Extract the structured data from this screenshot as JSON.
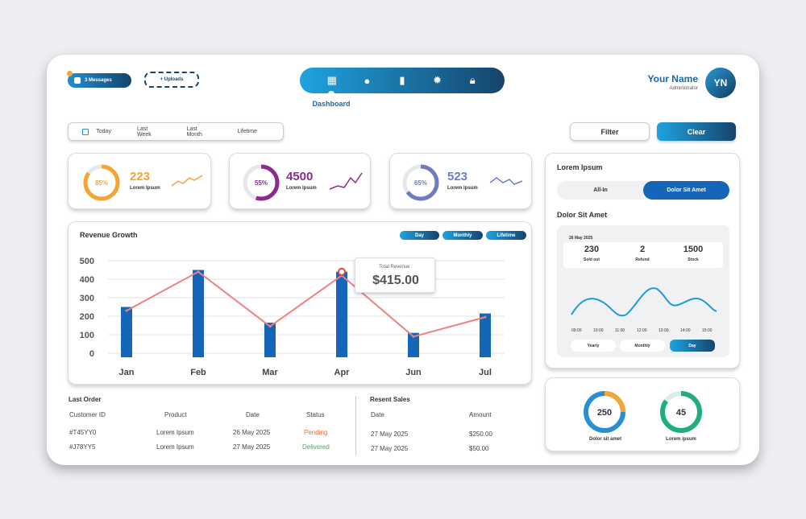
{
  "header": {
    "messages_label": "3 Messages",
    "uploads_label": "+ Uploads",
    "nav_active_label": "Dashboard",
    "user_name": "Your Name",
    "user_role": "Administrator",
    "avatar_initials": "YN",
    "nav_icons": [
      "dashboard-icon",
      "chat-icon",
      "bar-chart-icon",
      "gear-icon",
      "lock-icon"
    ]
  },
  "period": {
    "items": [
      "Today",
      "Last Week",
      "Last Month",
      "Lifetime"
    ]
  },
  "actions": {
    "filter_label": "Filter",
    "clear_label": "Clear"
  },
  "stats": [
    {
      "percent": "85%",
      "value": "223",
      "label": "Lorem Ipsum",
      "color": "#f4a534",
      "fraction": 0.85
    },
    {
      "percent": "55%",
      "value": "4500",
      "label": "Lorem Ipsum",
      "color": "#8e2a8e",
      "fraction": 0.55
    },
    {
      "percent": "65%",
      "value": "523",
      "label": "Lorem Ipsum",
      "color": "#6f7dc0",
      "fraction": 0.65
    }
  ],
  "revenue": {
    "title": "Revenue Growth",
    "toggles": [
      "Day",
      "Monthly",
      "Lifetime"
    ],
    "tooltip_label": "Total Revenue :",
    "tooltip_value": "$415.00"
  },
  "chart_data": {
    "type": "bar",
    "categories": [
      "Jan",
      "Feb",
      "Mar",
      "Apr",
      "Jun",
      "Jul"
    ],
    "series": [
      {
        "type": "bar",
        "values": [
          250,
          450,
          165,
          440,
          110,
          215
        ],
        "color": "#1565b8"
      },
      {
        "type": "line",
        "values": [
          230,
          440,
          145,
          420,
          90,
          195
        ],
        "color": "#f08080"
      }
    ],
    "yticks": [
      "0",
      "100",
      "200",
      "300",
      "400",
      "500"
    ],
    "ylim": [
      0,
      500
    ],
    "grid": true
  },
  "last_order": {
    "title": "Last Order",
    "headers": [
      "Customer ID",
      "Product",
      "Date",
      "Status"
    ],
    "rows": [
      {
        "id": "#T45YY0",
        "product": "Lorem Ipsum",
        "date": "26 May 2025",
        "status": "Pending",
        "status_color": "#f26b2f"
      },
      {
        "id": "#J78YY5",
        "product": "Lorem Ipsum",
        "date": "27 May 2025",
        "status": "Delivered",
        "status_color": "#3fae49"
      }
    ]
  },
  "recent_sales": {
    "title": "Resent Sales",
    "headers": [
      "Date",
      "Amount"
    ],
    "rows": [
      {
        "date": "27 May 2025",
        "amount": "$250.00"
      },
      {
        "date": "27 May 2025",
        "amount": "$50.00"
      }
    ]
  },
  "side_panel": {
    "title": "Lorem Ipsum",
    "segments": [
      "All-In",
      "Dolor Sit Amet"
    ],
    "subtitle": "Dolor Sit Amet",
    "date": "26 May 2025",
    "metrics": [
      {
        "value": "230",
        "label": "Sold out"
      },
      {
        "value": "2",
        "label": "Refund"
      },
      {
        "value": "1500",
        "label": "Stock"
      }
    ],
    "times": [
      "09:00",
      "10:00",
      "11:00",
      "12:00",
      "13:00",
      "14:00",
      "15:00"
    ],
    "toggles": [
      "Yearly",
      "Monthly",
      "Day"
    ]
  },
  "bottom_right": [
    {
      "value": "250",
      "label": "Dolor sit amet",
      "color": "#f4a534",
      "color2": "#2a8fd0",
      "fraction": 0.25
    },
    {
      "value": "45",
      "label": "Lorem ipsum",
      "color": "#1fae7a",
      "color2": "#1fae7a",
      "fraction": 0.85
    }
  ]
}
